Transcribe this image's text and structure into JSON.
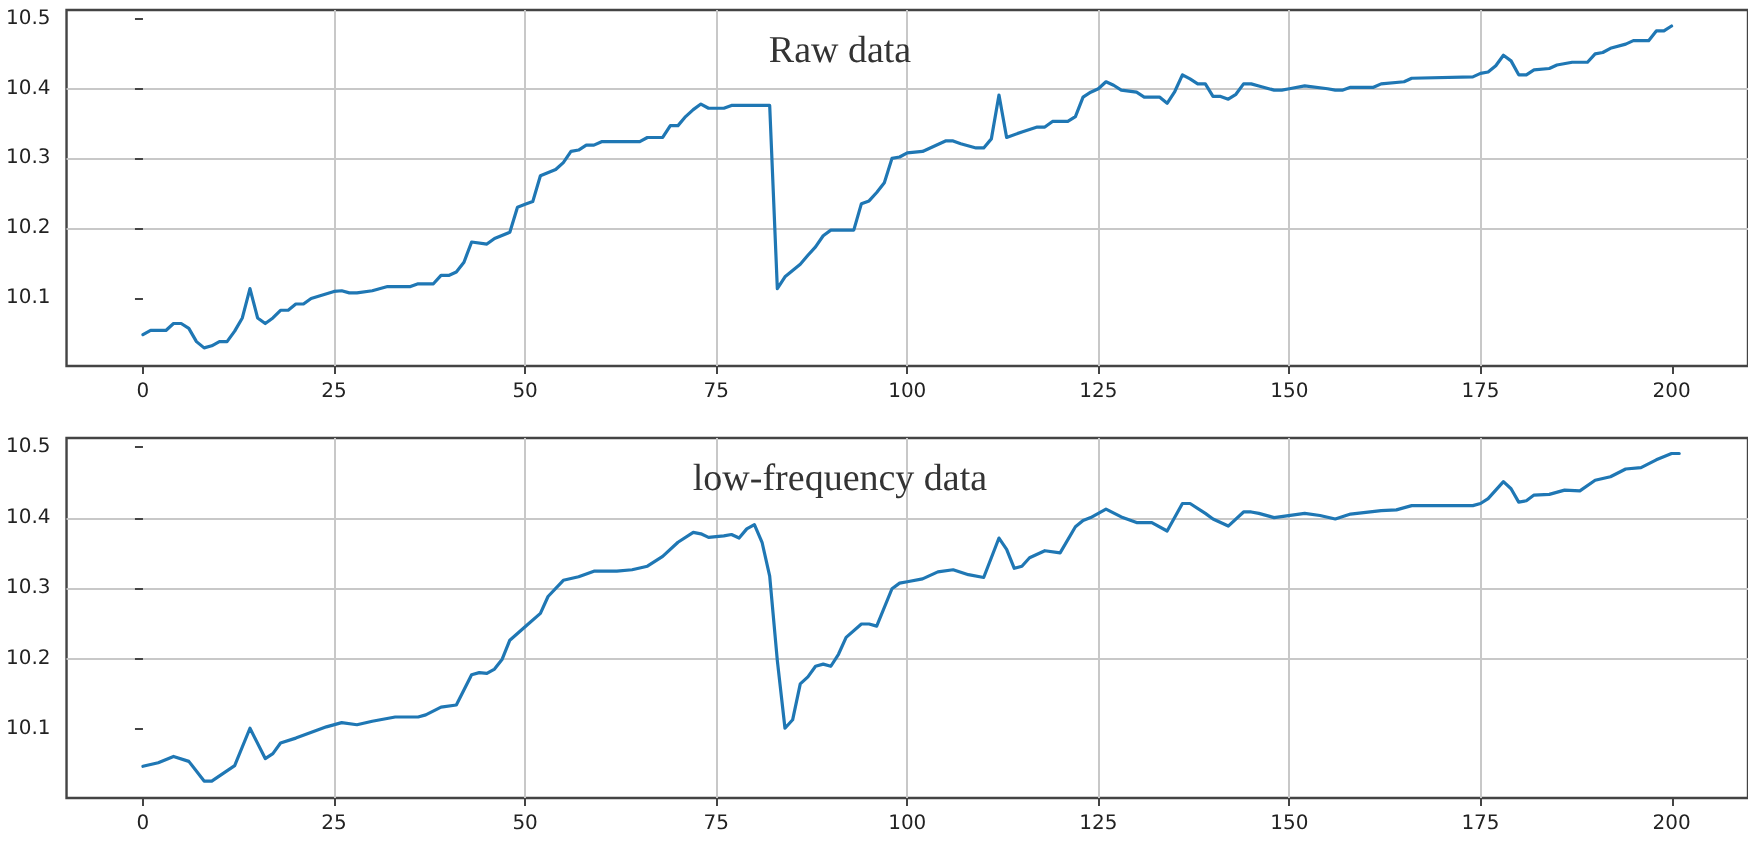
{
  "chart_data": [
    {
      "type": "line",
      "title": "Raw data",
      "xlim": [
        -10,
        210
      ],
      "xticks": [
        0,
        25,
        50,
        75,
        100,
        125,
        150,
        175,
        200
      ],
      "ylim": [
        10.002,
        10.513
      ],
      "yticks": [
        10.1,
        10.2,
        10.3,
        10.4,
        10.5
      ],
      "grid": true,
      "marker": "none",
      "line_style": "solid",
      "series": [
        {
          "color": "#1f77b4",
          "x": [
            0,
            1,
            3,
            4,
            5,
            6,
            7,
            8,
            9,
            10,
            11,
            12,
            13,
            14,
            15,
            16,
            17,
            18,
            19,
            20,
            21,
            22,
            25,
            26,
            27,
            28,
            30,
            32,
            35,
            36,
            38,
            39,
            40,
            41,
            42,
            43,
            45,
            46,
            48,
            49,
            50,
            51,
            52,
            54,
            55,
            56,
            57,
            58,
            59,
            60,
            65,
            66,
            68,
            69,
            70,
            71,
            72,
            73,
            74,
            76,
            77,
            82,
            83,
            84,
            85,
            86,
            87,
            88,
            89,
            90,
            93,
            94,
            95,
            96,
            97,
            98,
            99,
            100,
            102,
            103,
            105,
            106,
            107,
            109,
            110,
            111,
            112,
            113,
            115,
            117,
            118,
            119,
            121,
            122,
            123,
            124,
            125,
            126,
            127,
            128,
            130,
            131,
            133,
            134,
            135,
            136,
            137,
            138,
            139,
            140,
            141,
            142,
            143,
            144,
            145,
            146,
            148,
            149,
            150,
            152,
            155,
            156,
            157,
            158,
            161,
            162,
            165,
            166,
            174,
            175,
            176,
            177,
            178,
            179,
            180,
            181,
            182,
            184,
            185,
            187,
            189,
            190,
            191,
            192,
            194,
            195,
            197,
            198,
            199,
            200
          ],
          "values": [
            10.047,
            10.053,
            10.053,
            10.063,
            10.063,
            10.056,
            10.037,
            10.028,
            10.031,
            10.037,
            10.037,
            10.052,
            10.071,
            10.113,
            10.071,
            10.063,
            10.071,
            10.082,
            10.082,
            10.091,
            10.091,
            10.099,
            10.109,
            10.11,
            10.107,
            10.107,
            10.11,
            10.116,
            10.116,
            10.12,
            10.12,
            10.132,
            10.132,
            10.137,
            10.151,
            10.18,
            10.177,
            10.185,
            10.194,
            10.23,
            10.234,
            10.238,
            10.275,
            10.284,
            10.294,
            10.31,
            10.312,
            10.319,
            10.319,
            10.324,
            10.324,
            10.33,
            10.33,
            10.347,
            10.347,
            10.36,
            10.37,
            10.378,
            10.372,
            10.372,
            10.376,
            10.376,
            10.113,
            10.13,
            10.139,
            10.148,
            10.161,
            10.173,
            10.189,
            10.197,
            10.197,
            10.235,
            10.239,
            10.251,
            10.265,
            10.3,
            10.302,
            10.308,
            10.31,
            10.315,
            10.325,
            10.325,
            10.321,
            10.315,
            10.315,
            10.328,
            10.391,
            10.33,
            10.338,
            10.345,
            10.345,
            10.353,
            10.353,
            10.36,
            10.388,
            10.395,
            10.4,
            10.41,
            10.405,
            10.398,
            10.395,
            10.388,
            10.388,
            10.379,
            10.396,
            10.42,
            10.414,
            10.407,
            10.407,
            10.389,
            10.389,
            10.385,
            10.392,
            10.407,
            10.407,
            10.404,
            10.398,
            10.398,
            10.4,
            10.404,
            10.4,
            10.398,
            10.398,
            10.402,
            10.402,
            10.407,
            10.41,
            10.415,
            10.417,
            10.422,
            10.424,
            10.433,
            10.448,
            10.44,
            10.42,
            10.42,
            10.427,
            10.429,
            10.434,
            10.438,
            10.438,
            10.45,
            10.452,
            10.458,
            10.464,
            10.469,
            10.469,
            10.483,
            10.483,
            10.49
          ]
        }
      ]
    },
    {
      "type": "line",
      "title": "low-frequency data",
      "xlim": [
        -10,
        210
      ],
      "xticks": [
        0,
        25,
        50,
        75,
        100,
        125,
        150,
        175,
        200
      ],
      "ylim": [
        10.002,
        10.513
      ],
      "yticks": [
        10.1,
        10.2,
        10.3,
        10.4,
        10.5
      ],
      "grid": true,
      "marker": "none",
      "line_style": "solid",
      "series": [
        {
          "color": "#1f77b4",
          "x": [
            0,
            2,
            4,
            6,
            8,
            9,
            12,
            14,
            16,
            17,
            18,
            20,
            24,
            26,
            28,
            30,
            33,
            36,
            37,
            39,
            41,
            43,
            44,
            45,
            46,
            47,
            48,
            50,
            52,
            53,
            55,
            57,
            59,
            62,
            64,
            66,
            68,
            70,
            72,
            73,
            74,
            76,
            77,
            78,
            79,
            80,
            81,
            82,
            83,
            84,
            85,
            86,
            87,
            88,
            89,
            90,
            91,
            92,
            94,
            95,
            96,
            98,
            99,
            100,
            102,
            104,
            106,
            108,
            110,
            112,
            113,
            114,
            115,
            116,
            118,
            120,
            122,
            123,
            124,
            126,
            128,
            130,
            132,
            134,
            136,
            137,
            139,
            140,
            142,
            144,
            145,
            146,
            148,
            152,
            154,
            156,
            158,
            162,
            164,
            166,
            174,
            175,
            176,
            178,
            179,
            180,
            181,
            182,
            184,
            186,
            188,
            190,
            192,
            194,
            196,
            198,
            200,
            201
          ],
          "values": [
            10.047,
            10.052,
            10.061,
            10.054,
            10.026,
            10.026,
            10.048,
            10.101,
            10.058,
            10.065,
            10.08,
            10.087,
            10.103,
            10.109,
            10.106,
            10.111,
            10.117,
            10.117,
            10.12,
            10.131,
            10.134,
            10.177,
            10.18,
            10.179,
            10.185,
            10.199,
            10.226,
            10.245,
            10.264,
            10.288,
            10.311,
            10.316,
            10.324,
            10.324,
            10.326,
            10.331,
            10.345,
            10.365,
            10.379,
            10.377,
            10.372,
            10.374,
            10.376,
            10.371,
            10.384,
            10.39,
            10.365,
            10.317,
            10.197,
            10.101,
            10.113,
            10.164,
            10.174,
            10.189,
            10.192,
            10.189,
            10.206,
            10.23,
            10.249,
            10.249,
            10.246,
            10.299,
            10.307,
            10.309,
            10.313,
            10.323,
            10.326,
            10.319,
            10.315,
            10.371,
            10.355,
            10.328,
            10.331,
            10.343,
            10.353,
            10.35,
            10.387,
            10.396,
            10.4,
            10.412,
            10.401,
            10.393,
            10.393,
            10.381,
            10.42,
            10.42,
            10.406,
            10.398,
            10.388,
            10.408,
            10.408,
            10.406,
            10.4,
            10.406,
            10.403,
            10.398,
            10.405,
            10.41,
            10.411,
            10.417,
            10.417,
            10.42,
            10.427,
            10.451,
            10.441,
            10.422,
            10.424,
            10.432,
            10.433,
            10.439,
            10.438,
            10.453,
            10.458,
            10.469,
            10.471,
            10.482,
            10.491,
            10.491
          ]
        }
      ]
    }
  ]
}
